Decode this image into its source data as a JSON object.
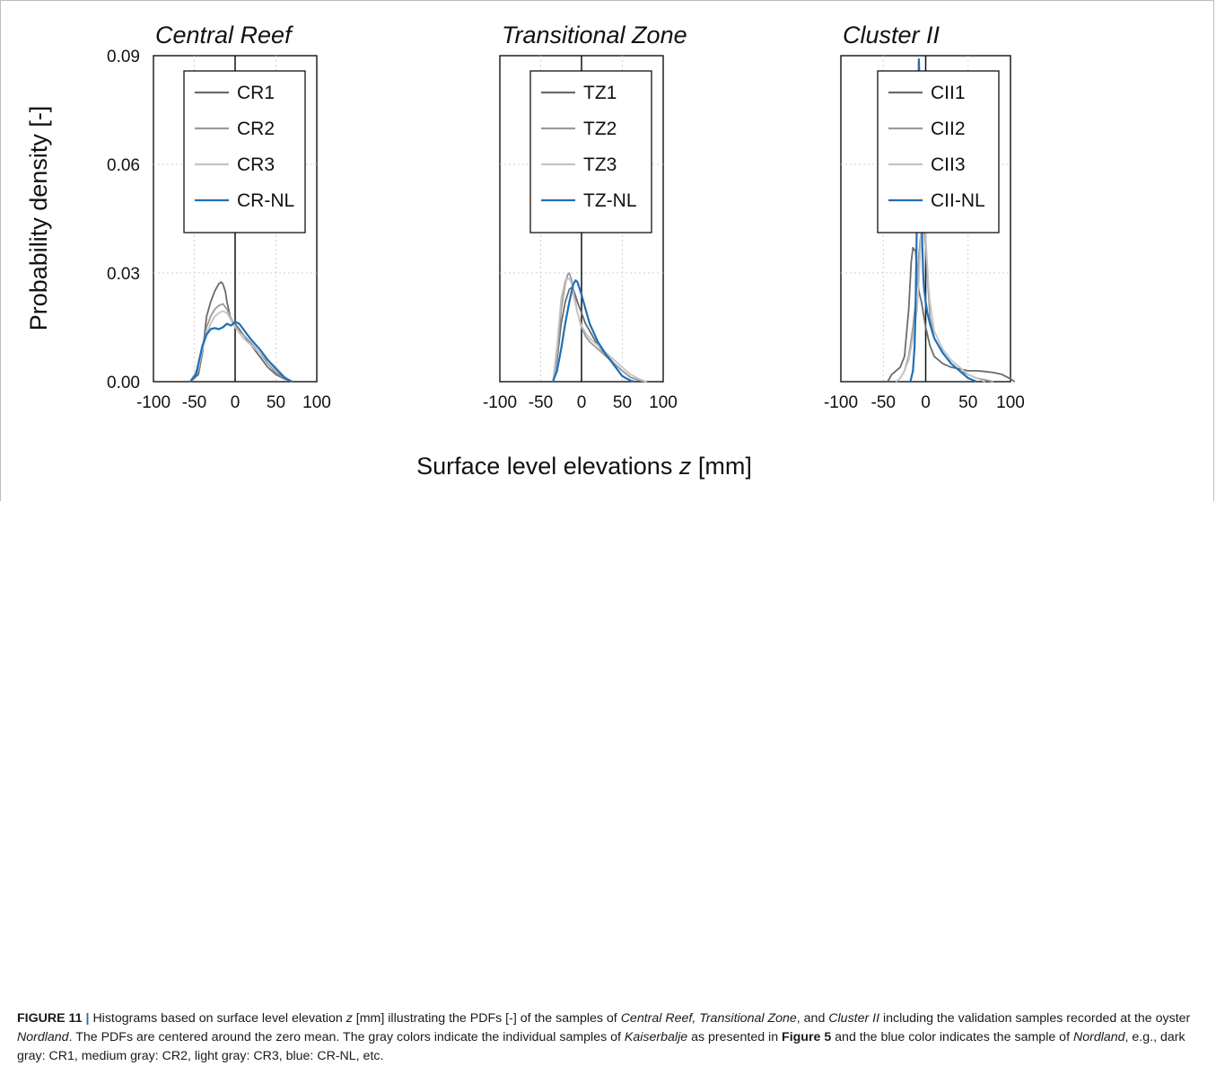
{
  "figure": {
    "caption_label": "FIGURE 11",
    "caption_separator": "|",
    "caption_parts": [
      {
        "t": "Histograms based on surface level elevation ",
        "s": ""
      },
      {
        "t": "z",
        "s": "i"
      },
      {
        "t": " [mm] illustrating the PDFs [-] of the samples of ",
        "s": ""
      },
      {
        "t": "Central Reef, Transitional Zone",
        "s": "i"
      },
      {
        "t": ", and ",
        "s": ""
      },
      {
        "t": "Cluster II",
        "s": "i"
      },
      {
        "t": " including the validation samples recorded at the oyster ",
        "s": ""
      },
      {
        "t": "Nordland",
        "s": "i"
      },
      {
        "t": ". The PDFs are centered around the zero mean. The gray colors indicate the individual samples of ",
        "s": ""
      },
      {
        "t": "Kaiserbalje",
        "s": "i"
      },
      {
        "t": " as presented in ",
        "s": ""
      },
      {
        "t": "Figure 5",
        "s": "b"
      },
      {
        "t": " and the blue color indicates the sample of ",
        "s": ""
      },
      {
        "t": "Nordland",
        "s": "i"
      },
      {
        "t": ", e.g., dark gray: CR1, medium gray: CR2, light gray: CR3, blue: CR-NL, etc.",
        "s": ""
      }
    ]
  },
  "colors": {
    "dark_gray": "#6b6b6b",
    "medium_gray": "#9a9a9a",
    "light_gray": "#c4c4c4",
    "blue": "#1f6fb8",
    "grid": "#cfcfcf"
  },
  "chart_data": {
    "type": "line",
    "ylabel": "Probability density [-]",
    "xlabel_parts": [
      "Surface level elevations ",
      "z",
      " [mm]"
    ],
    "xlim": [
      -100,
      100
    ],
    "ylim": [
      0,
      0.09
    ],
    "xticks": [
      -100,
      -50,
      0,
      50,
      100
    ],
    "xtick_labels": [
      "-100",
      "-50",
      "0",
      "50",
      "100"
    ],
    "yticks": [
      0,
      0.03,
      0.06,
      0.09
    ],
    "ytick_labels": [
      "0.00",
      "0.03",
      "0.06",
      "0.09"
    ],
    "grid": true,
    "legend_position": "top-right",
    "panels": [
      {
        "title": "Central Reef",
        "series": [
          {
            "name": "CR1",
            "color": "dark_gray",
            "x": [
              -55,
              -45,
              -40,
              -35,
              -30,
              -25,
              -20,
              -17,
              -15,
              -12,
              -10,
              -5,
              0,
              5,
              10,
              20,
              30,
              40,
              50,
              60,
              70
            ],
            "y": [
              0,
              0.002,
              0.008,
              0.018,
              0.022,
              0.025,
              0.027,
              0.0275,
              0.027,
              0.025,
              0.022,
              0.017,
              0.016,
              0.0145,
              0.013,
              0.01,
              0.007,
              0.004,
              0.002,
              0.0008,
              0
            ]
          },
          {
            "name": "CR2",
            "color": "medium_gray",
            "x": [
              -55,
              -45,
              -40,
              -35,
              -30,
              -25,
              -20,
              -15,
              -10,
              -5,
              0,
              5,
              10,
              20,
              30,
              40,
              50,
              60,
              70
            ],
            "y": [
              0,
              0.003,
              0.009,
              0.015,
              0.018,
              0.02,
              0.021,
              0.0215,
              0.02,
              0.0175,
              0.0155,
              0.014,
              0.013,
              0.0105,
              0.008,
              0.005,
              0.0025,
              0.001,
              0
            ]
          },
          {
            "name": "CR3",
            "color": "light_gray",
            "x": [
              -55,
              -45,
              -40,
              -35,
              -30,
              -25,
              -20,
              -15,
              -10,
              -5,
              0,
              5,
              10,
              20,
              30,
              40,
              50,
              60,
              70
            ],
            "y": [
              0,
              0.004,
              0.009,
              0.013,
              0.016,
              0.018,
              0.019,
              0.0195,
              0.019,
              0.017,
              0.015,
              0.0135,
              0.012,
              0.01,
              0.008,
              0.006,
              0.004,
              0.0015,
              0
            ]
          },
          {
            "name": "CR-NL",
            "color": "blue",
            "x": [
              -55,
              -48,
              -45,
              -40,
              -35,
              -30,
              -25,
              -20,
              -15,
              -10,
              -5,
              0,
              5,
              10,
              15,
              20,
              30,
              40,
              50,
              60,
              65,
              70
            ],
            "y": [
              0,
              0.002,
              0.005,
              0.01,
              0.013,
              0.0145,
              0.0148,
              0.0145,
              0.015,
              0.016,
              0.0155,
              0.0165,
              0.016,
              0.0145,
              0.013,
              0.0115,
              0.009,
              0.006,
              0.0035,
              0.0012,
              0.0005,
              0
            ]
          }
        ]
      },
      {
        "title": "Transitional Zone",
        "series": [
          {
            "name": "TZ1",
            "color": "dark_gray",
            "x": [
              -35,
              -30,
              -25,
              -20,
              -15,
              -12,
              -10,
              -5,
              0,
              5,
              10,
              20,
              30,
              40,
              50,
              60,
              70,
              80
            ],
            "y": [
              0,
              0.006,
              0.016,
              0.022,
              0.0255,
              0.026,
              0.0255,
              0.022,
              0.019,
              0.016,
              0.014,
              0.01,
              0.0075,
              0.005,
              0.003,
              0.0012,
              0.0004,
              0
            ]
          },
          {
            "name": "TZ2",
            "color": "medium_gray",
            "x": [
              -35,
              -30,
              -25,
              -20,
              -17,
              -15,
              -12,
              -10,
              -5,
              0,
              5,
              10,
              20,
              30,
              40,
              50,
              60,
              70,
              80
            ],
            "y": [
              0,
              0.007,
              0.02,
              0.027,
              0.0295,
              0.03,
              0.028,
              0.025,
              0.019,
              0.015,
              0.0125,
              0.011,
              0.009,
              0.007,
              0.005,
              0.003,
              0.0012,
              0.0004,
              0
            ]
          },
          {
            "name": "TZ3",
            "color": "light_gray",
            "x": [
              -35,
              -30,
              -25,
              -20,
              -15,
              -12,
              -10,
              -5,
              0,
              5,
              10,
              20,
              30,
              40,
              50,
              60,
              70,
              80
            ],
            "y": [
              0,
              0.01,
              0.023,
              0.028,
              0.0285,
              0.027,
              0.024,
              0.019,
              0.0155,
              0.0135,
              0.012,
              0.01,
              0.008,
              0.006,
              0.004,
              0.002,
              0.0008,
              0
            ]
          },
          {
            "name": "TZ-NL",
            "color": "blue",
            "x": [
              -35,
              -30,
              -25,
              -20,
              -15,
              -10,
              -7,
              -5,
              0,
              5,
              10,
              20,
              30,
              40,
              50,
              60,
              65
            ],
            "y": [
              0,
              0.003,
              0.009,
              0.016,
              0.022,
              0.027,
              0.028,
              0.0275,
              0.024,
              0.02,
              0.016,
              0.011,
              0.0075,
              0.0045,
              0.0015,
              0.0003,
              0
            ]
          }
        ]
      },
      {
        "title": "Cluster II",
        "series": [
          {
            "name": "CII1",
            "color": "dark_gray",
            "x": [
              -45,
              -40,
              -35,
              -30,
              -25,
              -20,
              -17,
              -15,
              -12,
              -10,
              -8,
              -5,
              0,
              5,
              10,
              20,
              30,
              40,
              50,
              60,
              70,
              80,
              90,
              100,
              105
            ],
            "y": [
              0,
              0.002,
              0.003,
              0.004,
              0.007,
              0.02,
              0.033,
              0.037,
              0.036,
              0.03,
              0.025,
              0.022,
              0.015,
              0.01,
              0.007,
              0.005,
              0.004,
              0.0035,
              0.003,
              0.003,
              0.0028,
              0.0025,
              0.002,
              0.0008,
              0
            ]
          },
          {
            "name": "CII2",
            "color": "medium_gray",
            "x": [
              -35,
              -30,
              -25,
              -20,
              -15,
              -12,
              -10,
              -8,
              -6,
              -5,
              -3,
              0,
              5,
              10,
              20,
              30,
              40,
              50,
              60,
              70,
              80
            ],
            "y": [
              0,
              0.001,
              0.003,
              0.007,
              0.015,
              0.022,
              0.028,
              0.035,
              0.04,
              0.043,
              0.045,
              0.037,
              0.018,
              0.012,
              0.008,
              0.005,
              0.003,
              0.002,
              0.001,
              0.0005,
              0
            ]
          },
          {
            "name": "CII3",
            "color": "light_gray",
            "x": [
              -35,
              -30,
              -25,
              -20,
              -15,
              -10,
              -8,
              -6,
              -5,
              -3,
              -1,
              0,
              3,
              5,
              10,
              20,
              30,
              40,
              50,
              60,
              70
            ],
            "y": [
              0,
              0.001,
              0.003,
              0.006,
              0.012,
              0.02,
              0.028,
              0.038,
              0.046,
              0.051,
              0.048,
              0.04,
              0.028,
              0.022,
              0.014,
              0.009,
              0.006,
              0.004,
              0.002,
              0.001,
              0
            ]
          },
          {
            "name": "CII-NL",
            "color": "blue",
            "x": [
              -18,
              -15,
              -13,
              -12,
              -11,
              -10,
              -9,
              -8,
              -7,
              -6,
              -5,
              -4,
              -3,
              -2,
              0,
              2,
              5,
              10,
              20,
              30,
              40,
              50,
              60
            ],
            "y": [
              0,
              0.003,
              0.01,
              0.02,
              0.035,
              0.05,
              0.075,
              0.089,
              0.08,
              0.065,
              0.05,
              0.038,
              0.03,
              0.026,
              0.022,
              0.019,
              0.016,
              0.012,
              0.008,
              0.005,
              0.003,
              0.001,
              0
            ]
          }
        ]
      }
    ]
  }
}
